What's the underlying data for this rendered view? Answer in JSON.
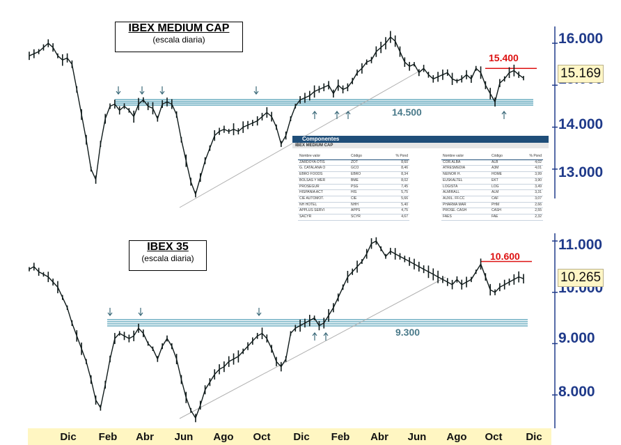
{
  "chart_data": [
    {
      "type": "line",
      "title": "IBEX MEDIUM CAP",
      "subtitle": "(escala diaria)",
      "x_labels": [
        "Dic",
        "Feb",
        "Abr",
        "Jun",
        "Ago",
        "Oct",
        "Dic",
        "Feb",
        "Abr",
        "Jun",
        "Ago",
        "Oct",
        "Dic"
      ],
      "y_ticks": [
        13000,
        14000,
        15000,
        16000
      ],
      "y_tick_labels": [
        "13.000",
        "14.000",
        "15.000",
        "16.000"
      ],
      "ylim": [
        12300,
        16400
      ],
      "series": [
        {
          "values": [
            15700,
            15750,
            15800,
            15900,
            16000,
            15900,
            15700,
            15600,
            15650,
            15500,
            14900,
            14300,
            13700,
            13000,
            12750,
            13600,
            14200,
            14500,
            14550,
            14400,
            14500,
            14400,
            14250,
            14550,
            14650,
            14500,
            14450,
            14200,
            14550,
            14600,
            14550,
            14300,
            13700,
            13200,
            12700,
            12400,
            12800,
            13200,
            13500,
            13800,
            13900,
            13950,
            13900,
            13950,
            13900,
            14000,
            14050,
            14100,
            14150,
            14250,
            14350,
            14250,
            14000,
            13600,
            13800,
            14200,
            14500,
            14650,
            14700,
            14750,
            14850,
            14900,
            14950,
            15000,
            14800,
            15000,
            14900,
            14950,
            15100,
            15300,
            15400,
            15550,
            15600,
            15800,
            15900,
            16000,
            16150,
            16050,
            15800,
            15550,
            15450,
            15500,
            15300,
            15400,
            15250,
            15150,
            15200,
            15250,
            15300,
            15150,
            15100,
            15150,
            15250,
            15150,
            15400,
            15300,
            15000,
            14800,
            14600,
            15050,
            15150,
            15300,
            15350,
            15250,
            15169
          ]
        }
      ],
      "resistance": {
        "value": 15400,
        "label": "15.400"
      },
      "support": {
        "value": 14500,
        "label": "14.500"
      },
      "last_value": "15.169",
      "support_arrows_down": 4,
      "support_arrows_up": 4,
      "components": {
        "title": "Componentes",
        "index_name": "IBEX MEDIUM CAP",
        "headers": [
          "Nombre valor",
          "Código",
          "% Pond"
        ],
        "left": [
          [
            "ZARDOYA OTIS",
            "ZOT",
            "8,60"
          ],
          [
            "G. CATALANA O",
            "GCO",
            "8,46"
          ],
          [
            "EBRO FOODS",
            "EBRO",
            "8,34"
          ],
          [
            "BOLSAS Y MER",
            "BME",
            "8,02"
          ],
          [
            "PROSEGUR",
            "PSG",
            "7,45"
          ],
          [
            "HISPANIA ACT",
            "HIS",
            "5,75"
          ],
          [
            "CIE AUTOMOT.",
            "CIE",
            "5,66"
          ],
          [
            "NH HOTEL",
            "NHH",
            "5,40"
          ],
          [
            "APPLUS SERVI",
            "APPS",
            "4,75"
          ],
          [
            "SACYR",
            "SCYR",
            "4,67"
          ]
        ],
        "right": [
          [
            "COR.ALBA",
            "ALB",
            "4,02"
          ],
          [
            "ATRESMEDIA",
            "A3M",
            "4,01"
          ],
          [
            "NEINOR H.",
            "HOME",
            "3,99"
          ],
          [
            "EUSKALTEL",
            "EKT",
            "3,90"
          ],
          [
            "LOGISTA",
            "LOG",
            "3,49"
          ],
          [
            "ALMIRALL",
            "ALM",
            "3,31"
          ],
          [
            "AUXIL. FF.CC",
            "CAF",
            "3,07"
          ],
          [
            "PHARMA MAR",
            "PHM",
            "2,66"
          ],
          [
            "PROSE. CASH",
            "CASH",
            "2,55"
          ],
          [
            "FAES",
            "FAE",
            "2,32"
          ]
        ]
      }
    },
    {
      "type": "line",
      "title": "IBEX 35",
      "subtitle": "(escala diaria)",
      "x_labels": [
        "Dic",
        "Feb",
        "Abr",
        "Jun",
        "Ago",
        "Oct",
        "Dic",
        "Feb",
        "Abr",
        "Jun",
        "Ago",
        "Oct",
        "Dic"
      ],
      "y_ticks": [
        8000,
        9000,
        10000,
        11000
      ],
      "y_tick_labels": [
        "8.000",
        "9.000",
        "10.000",
        "11.000"
      ],
      "ylim": [
        7350,
        11150
      ],
      "series": [
        {
          "values": [
            10450,
            10500,
            10400,
            10350,
            10300,
            10200,
            10100,
            9900,
            9700,
            9400,
            9150,
            8900,
            8650,
            8300,
            7900,
            7750,
            8200,
            8700,
            9100,
            9200,
            9150,
            9100,
            9150,
            9300,
            9200,
            9000,
            8900,
            8700,
            8950,
            9100,
            8950,
            8700,
            8300,
            7950,
            7700,
            7550,
            7800,
            8100,
            8250,
            8400,
            8500,
            8550,
            8650,
            8700,
            8750,
            8850,
            8950,
            9050,
            9150,
            9200,
            9100,
            8900,
            8650,
            8550,
            8700,
            9200,
            9300,
            9350,
            9400,
            9450,
            9500,
            9350,
            9400,
            9550,
            9700,
            9900,
            10100,
            10300,
            10400,
            10500,
            10600,
            10750,
            10950,
            11000,
            10850,
            10700,
            10800,
            10750,
            10700,
            10650,
            10600,
            10550,
            10500,
            10450,
            10400,
            10350,
            10300,
            10250,
            10200,
            10150,
            10250,
            10150,
            10200,
            10250,
            10400,
            10550,
            10300,
            10050,
            10000,
            10100,
            10150,
            10200,
            10250,
            10300,
            10265
          ]
        }
      ],
      "resistance": {
        "value": 10600,
        "label": "10.600"
      },
      "support": {
        "value": 9300,
        "label": "9.300"
      },
      "last_value": "10.265",
      "support_arrows_down": 3,
      "support_arrows_up": 2
    }
  ]
}
